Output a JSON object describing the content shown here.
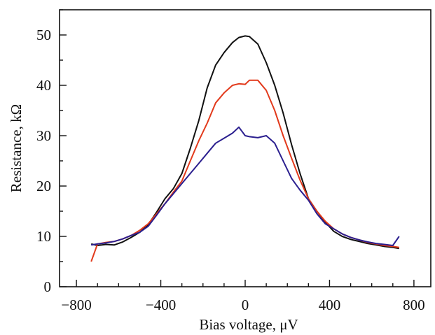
{
  "chart_data": {
    "type": "line",
    "xlabel": "Bias voltage, μV",
    "ylabel": "Resistance, kΩ",
    "xlim": [
      -880,
      880
    ],
    "ylim": [
      0,
      55
    ],
    "x_ticks": [
      -800,
      -400,
      0,
      400,
      800
    ],
    "x_tick_labels": [
      "−800",
      "−400",
      "0",
      "400",
      "800"
    ],
    "y_ticks": [
      0,
      10,
      20,
      30,
      40,
      50
    ],
    "y_tick_labels": [
      "0",
      "10",
      "20",
      "30",
      "40",
      "50"
    ],
    "grid": false,
    "legend": "none",
    "series": [
      {
        "color": "#111111",
        "x": [
          -730,
          -700,
          -660,
          -620,
          -580,
          -540,
          -500,
          -460,
          -420,
          -380,
          -340,
          -300,
          -260,
          -220,
          -180,
          -140,
          -100,
          -60,
          -30,
          0,
          20,
          60,
          100,
          140,
          180,
          220,
          260,
          300,
          340,
          380,
          420,
          460,
          500,
          540,
          580,
          620,
          660,
          700,
          730
        ],
        "y": [
          8.5,
          8.2,
          8.4,
          8.3,
          8.9,
          9.8,
          10.8,
          12.3,
          14.8,
          17.5,
          19.5,
          22.5,
          27.5,
          33,
          39.5,
          44,
          46.5,
          48.5,
          49.5,
          49.8,
          49.7,
          48.2,
          44.5,
          40,
          34.5,
          28.2,
          22.5,
          17.5,
          15,
          12.8,
          11,
          10,
          9.4,
          9.0,
          8.6,
          8.3,
          8.0,
          7.8,
          7.6
        ]
      },
      {
        "color": "#e23a1c",
        "x": [
          -730,
          -700,
          -660,
          -620,
          -580,
          -540,
          -500,
          -460,
          -420,
          -380,
          -340,
          -300,
          -260,
          -220,
          -180,
          -140,
          -100,
          -60,
          -30,
          0,
          20,
          60,
          100,
          140,
          180,
          220,
          260,
          300,
          340,
          380,
          420,
          460,
          500,
          540,
          580,
          620,
          660,
          700,
          730
        ],
        "y": [
          5,
          8.5,
          8.8,
          9.0,
          9.5,
          10.2,
          11.2,
          12.5,
          14.5,
          16.5,
          18.8,
          21,
          25,
          29,
          32.5,
          36.5,
          38.5,
          40,
          40.3,
          40.2,
          41,
          41,
          39,
          35,
          30,
          25.5,
          21.2,
          17.5,
          15,
          13,
          11.5,
          10.5,
          9.8,
          9.3,
          8.8,
          8.5,
          8.2,
          8.0,
          7.8
        ]
      },
      {
        "color": "#2b1f8f",
        "x": [
          -730,
          -700,
          -660,
          -620,
          -580,
          -540,
          -500,
          -460,
          -420,
          -380,
          -340,
          -300,
          -260,
          -220,
          -180,
          -140,
          -100,
          -60,
          -30,
          0,
          20,
          60,
          100,
          140,
          180,
          220,
          260,
          300,
          340,
          380,
          420,
          460,
          500,
          540,
          580,
          620,
          660,
          700,
          730
        ],
        "y": [
          8.3,
          8.5,
          8.7,
          9.0,
          9.5,
          10.2,
          10.8,
          12.0,
          14.2,
          16.5,
          18.5,
          20.5,
          22.5,
          24.5,
          26.5,
          28.5,
          29.5,
          30.5,
          31.7,
          30,
          29.8,
          29.6,
          30,
          28.5,
          25,
          21.5,
          19.2,
          17.2,
          14.5,
          12.5,
          11.5,
          10.5,
          9.8,
          9.3,
          8.9,
          8.6,
          8.4,
          8.2,
          10
        ]
      }
    ]
  }
}
